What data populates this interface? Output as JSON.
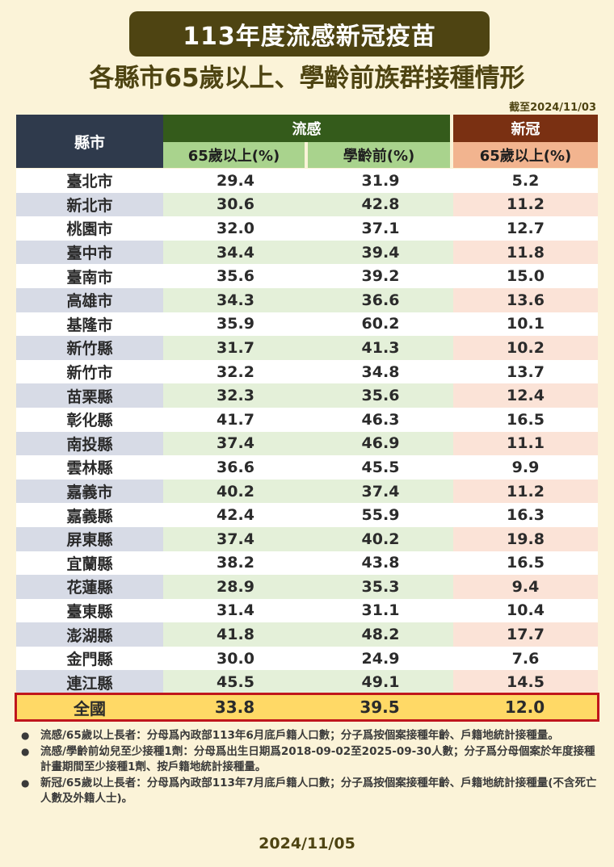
{
  "title": "113年度流感新冠疫苗",
  "subtitle": "各縣市65歲以上、學齡前族群接種情形",
  "as_of": "截至2024/11/03",
  "table": {
    "city_header": "縣市",
    "flu_header": "流感",
    "covid_header": "新冠",
    "flu_sub1": "65歲以上(%)",
    "flu_sub2": "學齡前(%)",
    "covid_sub": "65歲以上(%)",
    "rows": [
      {
        "city": "臺北市",
        "flu65": "29.4",
        "fluPre": "31.9",
        "covid65": "5.2"
      },
      {
        "city": "新北市",
        "flu65": "30.6",
        "fluPre": "42.8",
        "covid65": "11.2"
      },
      {
        "city": "桃園市",
        "flu65": "32.0",
        "fluPre": "37.1",
        "covid65": "12.7"
      },
      {
        "city": "臺中市",
        "flu65": "34.4",
        "fluPre": "39.4",
        "covid65": "11.8"
      },
      {
        "city": "臺南市",
        "flu65": "35.6",
        "fluPre": "39.2",
        "covid65": "15.0"
      },
      {
        "city": "高雄市",
        "flu65": "34.3",
        "fluPre": "36.6",
        "covid65": "13.6"
      },
      {
        "city": "基隆市",
        "flu65": "35.9",
        "fluPre": "60.2",
        "covid65": "10.1"
      },
      {
        "city": "新竹縣",
        "flu65": "31.7",
        "fluPre": "41.3",
        "covid65": "10.2"
      },
      {
        "city": "新竹市",
        "flu65": "32.2",
        "fluPre": "34.8",
        "covid65": "13.7"
      },
      {
        "city": "苗栗縣",
        "flu65": "32.3",
        "fluPre": "35.6",
        "covid65": "12.4"
      },
      {
        "city": "彰化縣",
        "flu65": "41.7",
        "fluPre": "46.3",
        "covid65": "16.5"
      },
      {
        "city": "南投縣",
        "flu65": "37.4",
        "fluPre": "46.9",
        "covid65": "11.1"
      },
      {
        "city": "雲林縣",
        "flu65": "36.6",
        "fluPre": "45.5",
        "covid65": "9.9"
      },
      {
        "city": "嘉義市",
        "flu65": "40.2",
        "fluPre": "37.4",
        "covid65": "11.2"
      },
      {
        "city": "嘉義縣",
        "flu65": "42.4",
        "fluPre": "55.9",
        "covid65": "16.3"
      },
      {
        "city": "屏東縣",
        "flu65": "37.4",
        "fluPre": "40.2",
        "covid65": "19.8"
      },
      {
        "city": "宜蘭縣",
        "flu65": "38.2",
        "fluPre": "43.8",
        "covid65": "16.5"
      },
      {
        "city": "花蓮縣",
        "flu65": "28.9",
        "fluPre": "35.3",
        "covid65": "9.4"
      },
      {
        "city": "臺東縣",
        "flu65": "31.4",
        "fluPre": "31.1",
        "covid65": "10.4"
      },
      {
        "city": "澎湖縣",
        "flu65": "41.8",
        "fluPre": "48.2",
        "covid65": "17.7"
      },
      {
        "city": "金門縣",
        "flu65": "30.0",
        "fluPre": "24.9",
        "covid65": "7.6"
      },
      {
        "city": "連江縣",
        "flu65": "45.5",
        "fluPre": "49.1",
        "covid65": "14.5"
      }
    ],
    "total": {
      "city": "全國",
      "flu65": "33.8",
      "fluPre": "39.5",
      "covid65": "12.0"
    }
  },
  "notes": [
    "流感/65歲以上長者：分母爲內政部113年6月底戶籍人口數；分子爲按個案接種年齡、戶籍地統計接種量。",
    "流感/學齡前幼兒至少接種1劑：分母爲出生日期爲2018-09-02至2025-09-30人數；分子爲分母個案於年度接種計畫期間至少接種1劑、按戶籍地統計接種量。",
    "新冠/65歲以上長者：分母爲內政部113年7月底戶籍人口數；分子爲按個案接種年齡、戶籍地統計接種量(不含死亡人數及外籍人士)。"
  ],
  "footer_date": "2024/11/05",
  "colors": {
    "background": "#fbf3d8",
    "title_bg": "#4e4412",
    "flu_header": "#345b1b",
    "covid_header": "#7a3012",
    "city_header": "#2f3a4c",
    "total_border": "#c0161c",
    "total_bg": "#ffd966"
  }
}
